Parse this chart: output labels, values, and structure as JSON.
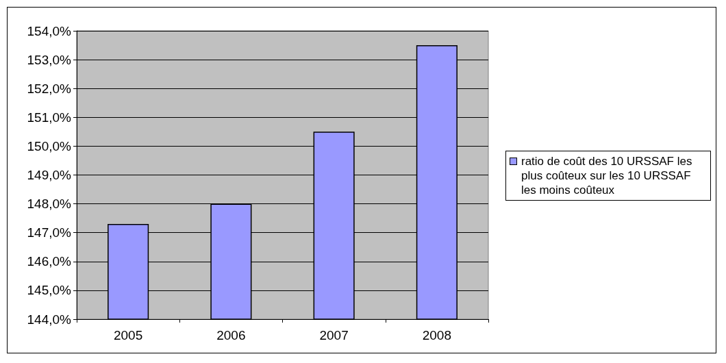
{
  "chart_data": {
    "type": "bar",
    "categories": [
      "2005",
      "2006",
      "2007",
      "2008"
    ],
    "series": [
      {
        "name": "ratio de coût des 10 URSSAF les plus coûteux sur les 10 URSSAF les moins coûteux",
        "color": "#9999ff",
        "values": [
          147.3,
          148.0,
          150.5,
          153.5
        ]
      }
    ],
    "ylim": [
      144,
      154
    ],
    "yticks": [
      {
        "value": 144,
        "label": "144,0%"
      },
      {
        "value": 145,
        "label": "145,0%"
      },
      {
        "value": 146,
        "label": "146,0%"
      },
      {
        "value": 147,
        "label": "147,0%"
      },
      {
        "value": 148,
        "label": "148,0%"
      },
      {
        "value": 149,
        "label": "149,0%"
      },
      {
        "value": 150,
        "label": "150,0%"
      },
      {
        "value": 151,
        "label": "151,0%"
      },
      {
        "value": 152,
        "label": "152,0%"
      },
      {
        "value": 153,
        "label": "153,0%"
      },
      {
        "value": 154,
        "label": "154,0%"
      }
    ],
    "grid": "y",
    "legend": "right"
  }
}
